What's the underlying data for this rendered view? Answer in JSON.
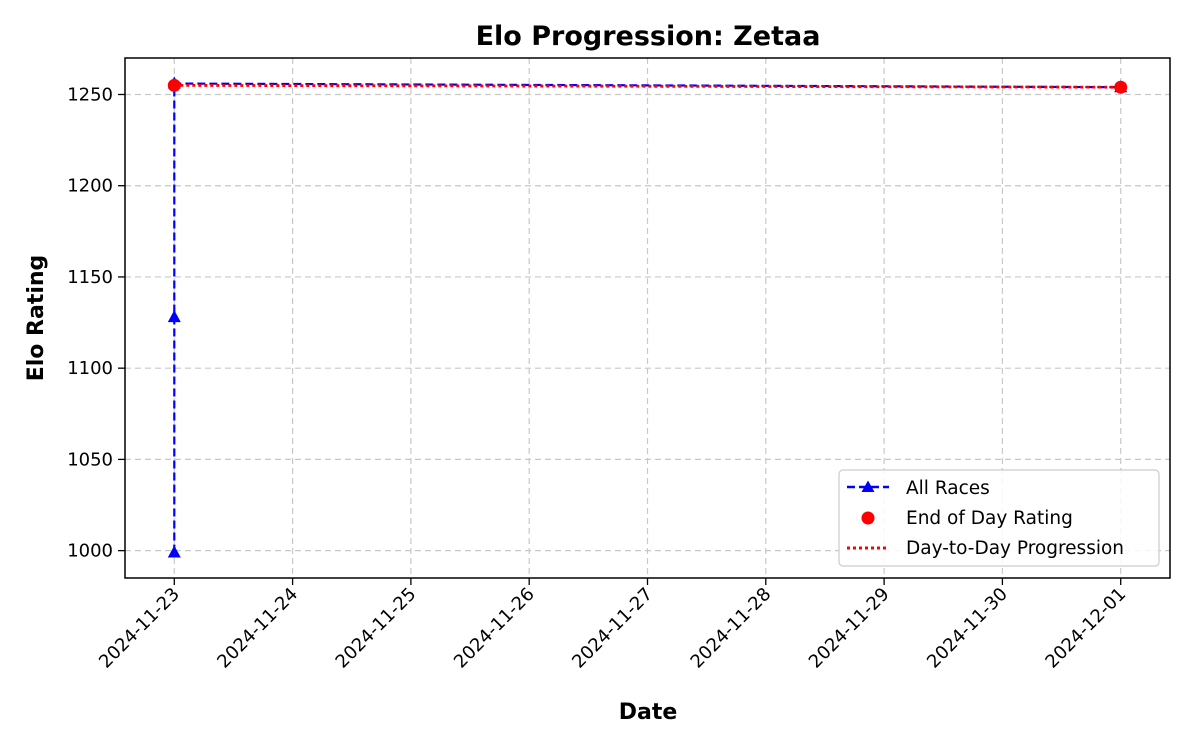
{
  "chart_data": {
    "type": "line",
    "title": "Elo Progression: Zetaa",
    "xlabel": "Date",
    "ylabel": "Elo Rating",
    "xlim": [
      "2024-11-22T14:00:00",
      "2024-12-01T10:00:00"
    ],
    "ylim": [
      985,
      1270
    ],
    "x_ticks": [
      "2024-11-23",
      "2024-11-24",
      "2024-11-25",
      "2024-11-26",
      "2024-11-27",
      "2024-11-28",
      "2024-11-29",
      "2024-11-30",
      "2024-12-01"
    ],
    "y_ticks": [
      1000,
      1050,
      1100,
      1150,
      1200,
      1250
    ],
    "grid": true,
    "legend_position": "lower-right",
    "series": [
      {
        "name": "All Races",
        "style": "dashed line with triangle markers",
        "color": "#0000ff",
        "points": [
          {
            "x": "2024-11-23",
            "y": 999
          },
          {
            "x": "2024-11-23",
            "y": 1128
          },
          {
            "x": "2024-11-23",
            "y": 1256
          },
          {
            "x": "2024-12-01",
            "y": 1254
          }
        ]
      },
      {
        "name": "End of Day Rating",
        "style": "circle markers",
        "color": "#ff0000",
        "points": [
          {
            "x": "2024-11-23",
            "y": 1255
          },
          {
            "x": "2024-12-01",
            "y": 1254
          }
        ]
      },
      {
        "name": "Day-to-Day Progression",
        "style": "dotted line",
        "color": "#ff0000",
        "points": [
          {
            "x": "2024-11-23",
            "y": 1255
          },
          {
            "x": "2024-12-01",
            "y": 1254
          }
        ]
      }
    ]
  }
}
